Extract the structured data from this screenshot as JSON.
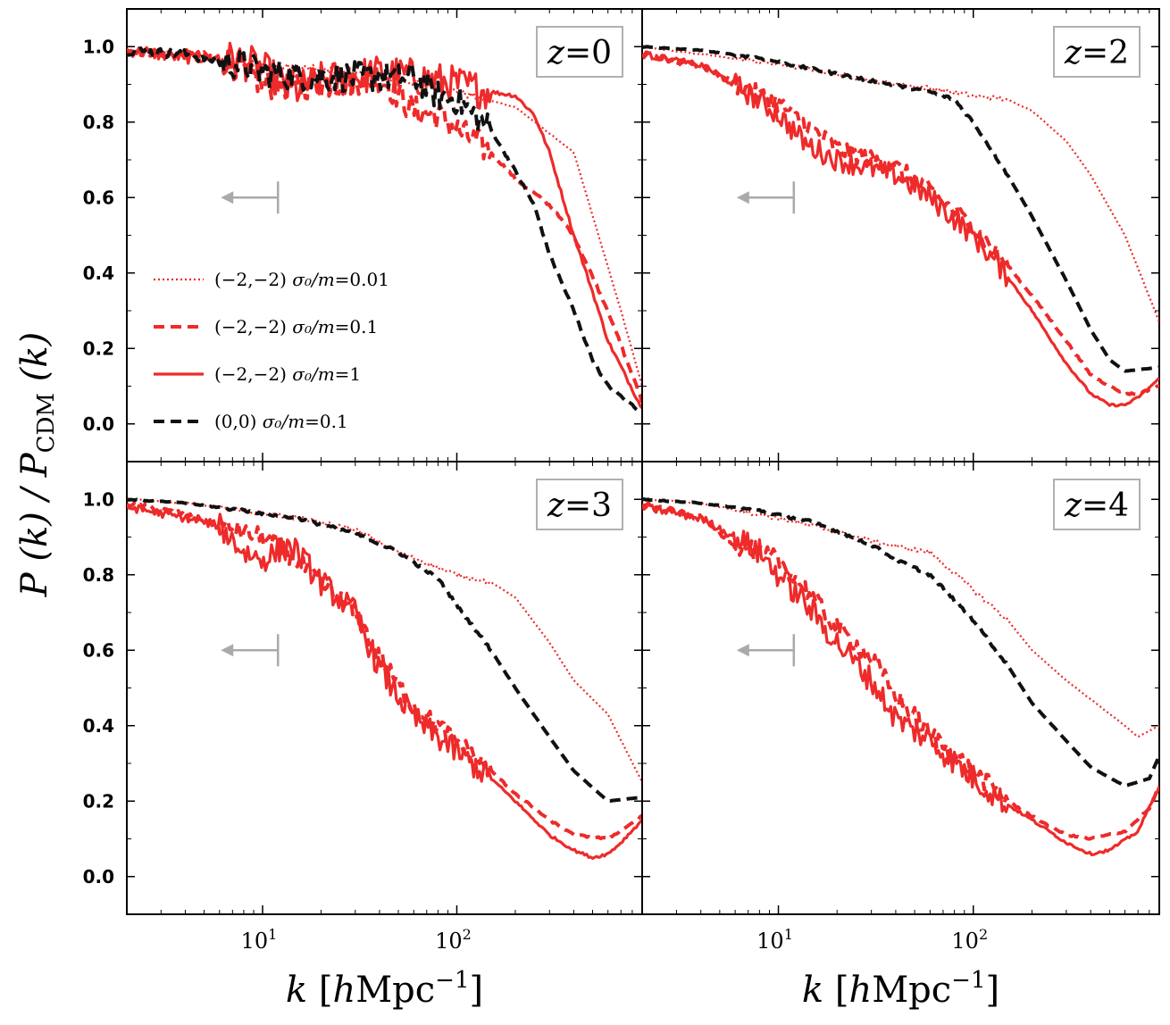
{
  "chart_data": {
    "type": "line",
    "layout": "2x2 panels, shared axes",
    "ylabel": "P(k) / P_CDM (k)",
    "xlabel": "k [hMpc^-1]",
    "xscale": "log",
    "xlim": [
      2,
      900
    ],
    "ylim": [
      -0.1,
      1.1
    ],
    "yticks": [
      "0.0",
      "0.2",
      "0.4",
      "0.6",
      "0.8",
      "1.0"
    ],
    "xticks": [
      "10^1",
      "10^2"
    ],
    "legend": {
      "placement": "left, first panel",
      "entries": [
        {
          "model": "(−2,−2)",
          "param": "σ₀/m",
          "value": "0.01",
          "style": "dotted",
          "color": "#ee2a2a"
        },
        {
          "model": "(−2,−2)",
          "param": "σ₀/m",
          "value": "0.1",
          "style": "dashed",
          "color": "#ee2a2a"
        },
        {
          "model": "(−2,−2)",
          "param": "σ₀/m",
          "value": "1",
          "style": "solid",
          "color": "#ee2a2a"
        },
        {
          "model": "(0,0)",
          "param": "σ₀/m",
          "value": "0.1",
          "style": "dashed",
          "color": "#111111"
        }
      ]
    },
    "panels": [
      {
        "label": "z = 0",
        "z": "0",
        "resolution_arrow_k": 12,
        "series": [
          {
            "name": "(-2,-2) s0/m=0.01",
            "noise": 0.01,
            "x": [
              2,
              4,
              6,
              10,
              20,
              40,
              70,
              100,
              200,
              400,
              700,
              900
            ],
            "y": [
              0.99,
              0.98,
              0.97,
              0.95,
              0.94,
              0.92,
              0.9,
              0.88,
              0.84,
              0.72,
              0.3,
              0.1
            ]
          },
          {
            "name": "(-2,-2) s0/m=0.1",
            "noise": 0.04,
            "x": [
              2,
              4,
              6,
              8,
              10,
              20,
              40,
              55,
              60,
              80,
              100,
              150,
              200,
              300,
              400,
              600,
              900
            ],
            "y": [
              0.99,
              0.98,
              0.97,
              0.94,
              0.9,
              0.9,
              0.92,
              0.85,
              0.83,
              0.82,
              0.78,
              0.72,
              0.65,
              0.58,
              0.5,
              0.3,
              0.06
            ]
          },
          {
            "name": "(-2,-2) s0/m=1",
            "noise": 0.05,
            "x": [
              2,
              4,
              6,
              8,
              10,
              14,
              20,
              30,
              40,
              60,
              100,
              150,
              200,
              250,
              300,
              400,
              500,
              600,
              900
            ],
            "y": [
              0.99,
              0.97,
              0.97,
              0.96,
              0.94,
              0.88,
              0.91,
              0.92,
              0.93,
              0.92,
              0.9,
              0.88,
              0.87,
              0.82,
              0.72,
              0.5,
              0.35,
              0.22,
              0.04
            ]
          },
          {
            "name": "(0,0) s0/m=0.1",
            "noise": 0.04,
            "x": [
              2,
              4,
              6,
              8,
              10,
              20,
              40,
              60,
              80,
              100,
              150,
              200,
              250,
              300,
              400,
              500,
              600,
              900
            ],
            "y": [
              0.99,
              0.98,
              0.96,
              0.95,
              0.93,
              0.92,
              0.92,
              0.92,
              0.87,
              0.86,
              0.78,
              0.67,
              0.58,
              0.45,
              0.3,
              0.17,
              0.1,
              0.03
            ]
          }
        ]
      },
      {
        "label": "z = 2",
        "z": "2",
        "resolution_arrow_k": 12,
        "series": [
          {
            "name": "(-2,-2) s0/m=0.01",
            "noise": 0.006,
            "x": [
              2,
              4,
              8,
              15,
              30,
              60,
              100,
              150,
              200,
              300,
              400,
              600,
              900
            ],
            "y": [
              1.0,
              0.98,
              0.96,
              0.94,
              0.91,
              0.89,
              0.87,
              0.86,
              0.83,
              0.75,
              0.66,
              0.5,
              0.27
            ]
          },
          {
            "name": "(-2,-2) s0/m=0.1",
            "noise": 0.025,
            "x": [
              2,
              4,
              6,
              10,
              20,
              40,
              60,
              100,
              150,
              200,
              300,
              400,
              500,
              600,
              700,
              900
            ],
            "y": [
              0.98,
              0.95,
              0.9,
              0.85,
              0.73,
              0.68,
              0.62,
              0.52,
              0.42,
              0.34,
              0.22,
              0.13,
              0.1,
              0.08,
              0.08,
              0.1
            ]
          },
          {
            "name": "(-2,-2) s0/m=1",
            "noise": 0.03,
            "x": [
              2,
              4,
              6,
              10,
              14,
              20,
              40,
              60,
              100,
              150,
              200,
              300,
              400,
              500,
              600,
              700,
              900
            ],
            "y": [
              0.98,
              0.95,
              0.9,
              0.82,
              0.74,
              0.7,
              0.66,
              0.6,
              0.5,
              0.39,
              0.3,
              0.16,
              0.08,
              0.05,
              0.05,
              0.07,
              0.12
            ]
          },
          {
            "name": "(0,0) s0/m=0.1",
            "noise": 0.004,
            "x": [
              2,
              4,
              8,
              15,
              30,
              60,
              80,
              100,
              150,
              200,
              300,
              400,
              500,
              600,
              900
            ],
            "y": [
              1.0,
              0.99,
              0.97,
              0.94,
              0.91,
              0.88,
              0.86,
              0.8,
              0.66,
              0.55,
              0.38,
              0.25,
              0.17,
              0.14,
              0.15
            ]
          }
        ]
      },
      {
        "label": "z = 3",
        "z": "3",
        "resolution_arrow_k": 12,
        "series": [
          {
            "name": "(-2,-2) s0/m=0.01",
            "noise": 0.006,
            "x": [
              2,
              4,
              8,
              15,
              30,
              50,
              100,
              150,
              200,
              300,
              400,
              600,
              900
            ],
            "y": [
              1.0,
              0.99,
              0.97,
              0.95,
              0.92,
              0.86,
              0.8,
              0.78,
              0.74,
              0.62,
              0.52,
              0.43,
              0.25
            ]
          },
          {
            "name": "(-2,-2) s0/m=0.1",
            "noise": 0.025,
            "x": [
              2,
              4,
              6,
              10,
              14,
              20,
              30,
              40,
              60,
              100,
              150,
              200,
              300,
              400,
              600,
              900
            ],
            "y": [
              0.99,
              0.96,
              0.93,
              0.9,
              0.85,
              0.78,
              0.7,
              0.58,
              0.45,
              0.36,
              0.28,
              0.22,
              0.15,
              0.11,
              0.1,
              0.16
            ]
          },
          {
            "name": "(-2,-2) s0/m=1",
            "noise": 0.035,
            "x": [
              2,
              4,
              6,
              8,
              10,
              14,
              20,
              30,
              40,
              60,
              100,
              150,
              200,
              300,
              400,
              500,
              600,
              700,
              900
            ],
            "y": [
              0.98,
              0.95,
              0.93,
              0.86,
              0.84,
              0.88,
              0.78,
              0.7,
              0.55,
              0.42,
              0.33,
              0.26,
              0.2,
              0.11,
              0.07,
              0.05,
              0.06,
              0.09,
              0.15
            ]
          },
          {
            "name": "(0,0) s0/m=0.1",
            "noise": 0.004,
            "x": [
              2,
              4,
              8,
              15,
              30,
              50,
              80,
              100,
              150,
              200,
              300,
              400,
              600,
              900
            ],
            "y": [
              1.0,
              0.99,
              0.97,
              0.95,
              0.91,
              0.86,
              0.79,
              0.72,
              0.6,
              0.5,
              0.37,
              0.28,
              0.2,
              0.21
            ]
          }
        ]
      },
      {
        "label": "z = 4",
        "z": "4",
        "resolution_arrow_k": 12,
        "series": [
          {
            "name": "(-2,-2) s0/m=0.01",
            "noise": 0.006,
            "x": [
              2,
              4,
              8,
              15,
              30,
              45,
              60,
              100,
              150,
              200,
              300,
              400,
              600,
              700,
              900
            ],
            "y": [
              1.0,
              0.99,
              0.96,
              0.93,
              0.89,
              0.87,
              0.86,
              0.76,
              0.68,
              0.6,
              0.52,
              0.47,
              0.4,
              0.37,
              0.4
            ]
          },
          {
            "name": "(-2,-2) s0/m=0.1",
            "noise": 0.025,
            "x": [
              2,
              4,
              6,
              10,
              14,
              20,
              30,
              40,
              60,
              100,
              150,
              200,
              300,
              400,
              600,
              800,
              900
            ],
            "y": [
              0.99,
              0.95,
              0.88,
              0.84,
              0.76,
              0.66,
              0.58,
              0.48,
              0.38,
              0.28,
              0.2,
              0.16,
              0.11,
              0.1,
              0.12,
              0.18,
              0.24
            ]
          },
          {
            "name": "(-2,-2) s0/m=1",
            "noise": 0.035,
            "x": [
              2,
              4,
              6,
              8,
              10,
              13,
              20,
              30,
              40,
              60,
              100,
              150,
              200,
              300,
              400,
              500,
              700,
              900
            ],
            "y": [
              0.98,
              0.95,
              0.9,
              0.86,
              0.8,
              0.74,
              0.62,
              0.52,
              0.42,
              0.36,
              0.26,
              0.19,
              0.15,
              0.09,
              0.06,
              0.07,
              0.12,
              0.24
            ]
          },
          {
            "name": "(0,0) s0/m=0.1",
            "noise": 0.004,
            "x": [
              2,
              4,
              8,
              15,
              30,
              40,
              60,
              100,
              150,
              200,
              300,
              400,
              600,
              800,
              900
            ],
            "y": [
              1.0,
              0.99,
              0.97,
              0.94,
              0.88,
              0.84,
              0.8,
              0.68,
              0.56,
              0.46,
              0.36,
              0.29,
              0.24,
              0.26,
              0.32
            ]
          }
        ]
      }
    ]
  }
}
